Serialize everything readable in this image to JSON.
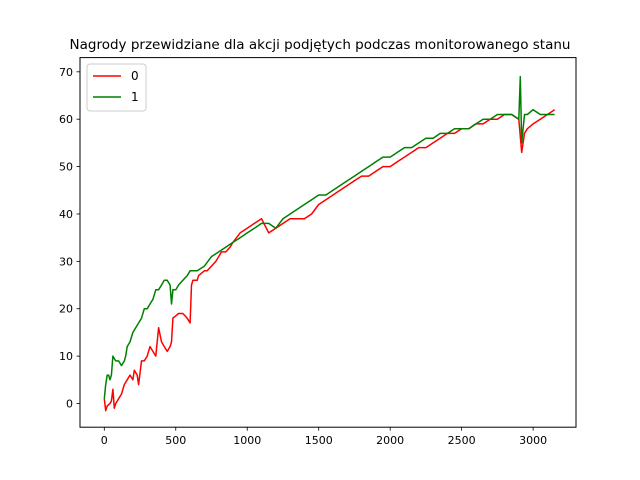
{
  "chart_data": {
    "type": "line",
    "title": "Nagrody przewidziane dla akcji podjętych podczas monitorowanego stanu",
    "xlabel": "",
    "ylabel": "",
    "xlim": [
      -170,
      3300
    ],
    "ylim": [
      -5,
      73
    ],
    "xticks": [
      0,
      500,
      1000,
      1500,
      2000,
      2500,
      3000
    ],
    "yticks": [
      0,
      10,
      20,
      30,
      40,
      50,
      60,
      70
    ],
    "grid": false,
    "legend": {
      "placement": "top-left",
      "entries": [
        "0",
        "1"
      ]
    },
    "series": [
      {
        "name": "0",
        "color": "#ff0000",
        "x": [
          0,
          10,
          20,
          40,
          50,
          60,
          70,
          80,
          90,
          100,
          120,
          140,
          160,
          180,
          200,
          210,
          230,
          240,
          260,
          280,
          300,
          320,
          340,
          360,
          380,
          400,
          420,
          440,
          460,
          470,
          480,
          500,
          520,
          550,
          580,
          600,
          610,
          620,
          650,
          660,
          700,
          720,
          750,
          780,
          800,
          820,
          850,
          880,
          900,
          950,
          1000,
          1050,
          1100,
          1150,
          1200,
          1250,
          1300,
          1350,
          1400,
          1450,
          1500,
          1550,
          1600,
          1650,
          1700,
          1750,
          1800,
          1850,
          1900,
          1950,
          2000,
          2050,
          2100,
          2150,
          2200,
          2250,
          2300,
          2350,
          2400,
          2450,
          2500,
          2550,
          2600,
          2650,
          2700,
          2750,
          2800,
          2850,
          2900,
          2920,
          2940,
          2960,
          3000,
          3050,
          3100,
          3150
        ],
        "values": [
          1,
          -1.5,
          -0.5,
          0,
          0.5,
          3,
          -1,
          0,
          0.5,
          1,
          2,
          4,
          5,
          6,
          5,
          7,
          6,
          4,
          9,
          9,
          10,
          12,
          11,
          10,
          16,
          13,
          12,
          11,
          12,
          13,
          18,
          18.5,
          19,
          19,
          18,
          17,
          25,
          26,
          26,
          27,
          28,
          28,
          29,
          30,
          31,
          32,
          32,
          33,
          34,
          36,
          37,
          38,
          39,
          36,
          37,
          38,
          39,
          39,
          39,
          40,
          42,
          43,
          44,
          45,
          46,
          47,
          48,
          48,
          49,
          50,
          50,
          51,
          52,
          53,
          54,
          54,
          55,
          56,
          57,
          57,
          58,
          58,
          59,
          59,
          60,
          60,
          61,
          61,
          60,
          53,
          57,
          58,
          59,
          60,
          61,
          62
        ]
      },
      {
        "name": "1",
        "color": "#008000",
        "x": [
          0,
          10,
          20,
          30,
          40,
          50,
          60,
          80,
          100,
          120,
          140,
          150,
          160,
          180,
          200,
          220,
          240,
          260,
          280,
          300,
          320,
          340,
          360,
          380,
          400,
          420,
          440,
          460,
          470,
          480,
          500,
          520,
          550,
          580,
          600,
          650,
          700,
          750,
          800,
          850,
          900,
          950,
          1000,
          1050,
          1100,
          1150,
          1200,
          1250,
          1300,
          1350,
          1400,
          1450,
          1500,
          1550,
          1600,
          1650,
          1700,
          1750,
          1800,
          1850,
          1900,
          1950,
          2000,
          2050,
          2100,
          2150,
          2200,
          2250,
          2300,
          2350,
          2400,
          2450,
          2500,
          2550,
          2600,
          2650,
          2700,
          2750,
          2800,
          2850,
          2900,
          2910,
          2920,
          2940,
          2960,
          3000,
          3050,
          3100,
          3150
        ],
        "values": [
          1,
          4,
          6,
          6,
          5,
          6,
          10,
          9,
          9,
          8,
          9,
          10,
          12,
          13,
          15,
          16,
          17,
          18,
          20,
          20,
          21,
          22,
          24,
          24,
          25,
          26,
          26,
          25,
          21,
          24,
          24,
          25,
          26,
          27,
          28,
          28,
          29,
          31,
          32,
          33,
          34,
          35,
          36,
          37,
          38,
          38,
          37,
          39,
          40,
          41,
          42,
          43,
          44,
          44,
          45,
          46,
          47,
          48,
          49,
          50,
          51,
          52,
          52,
          53,
          54,
          54,
          55,
          56,
          56,
          57,
          57,
          58,
          58,
          58,
          59,
          60,
          60,
          61,
          61,
          61,
          60,
          69,
          55,
          61,
          61,
          62,
          61,
          61,
          61
        ]
      }
    ]
  }
}
